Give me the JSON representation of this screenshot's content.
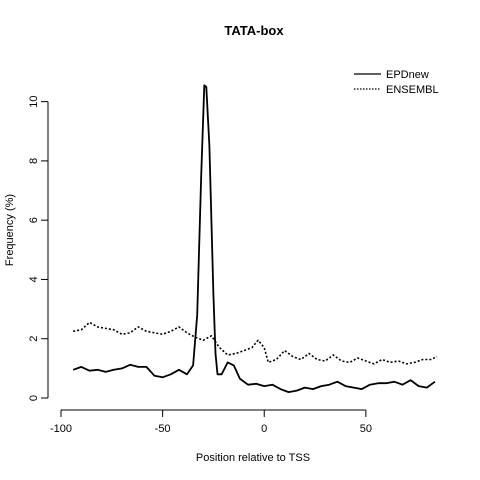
{
  "chart_data": {
    "type": "line",
    "title": "TATA-box",
    "xlabel": "Position relative to TSS",
    "ylabel": "Frequency (%)",
    "xlim": [
      -100,
      85
    ],
    "ylim": [
      0,
      11
    ],
    "x_ticks": [
      -100,
      -50,
      0,
      50
    ],
    "x_tick_labels": [
      "-100",
      "-50",
      "0",
      "50"
    ],
    "y_ticks": [
      0,
      2,
      4,
      6,
      8,
      10
    ],
    "y_tick_labels": [
      "0",
      "2",
      "4",
      "6",
      "8",
      "10"
    ],
    "grid": false,
    "legend_position": "top-right",
    "series": [
      {
        "name": "EPDnew",
        "style": "solid",
        "color": "#000000",
        "points": [
          [
            -94,
            0.95
          ],
          [
            -90,
            1.05
          ],
          [
            -86,
            0.92
          ],
          [
            -82,
            0.95
          ],
          [
            -78,
            0.88
          ],
          [
            -74,
            0.95
          ],
          [
            -70,
            1.0
          ],
          [
            -66,
            1.12
          ],
          [
            -62,
            1.05
          ],
          [
            -58,
            1.05
          ],
          [
            -54,
            0.75
          ],
          [
            -50,
            0.7
          ],
          [
            -46,
            0.8
          ],
          [
            -42,
            0.95
          ],
          [
            -38,
            0.8
          ],
          [
            -35,
            1.1
          ],
          [
            -33,
            2.8
          ],
          [
            -31,
            7.5
          ],
          [
            -29.5,
            10.55
          ],
          [
            -28.5,
            10.5
          ],
          [
            -27,
            8.5
          ],
          [
            -26,
            6.0
          ],
          [
            -25,
            3.5
          ],
          [
            -24,
            1.5
          ],
          [
            -23,
            0.8
          ],
          [
            -21,
            0.8
          ],
          [
            -18,
            1.2
          ],
          [
            -15,
            1.1
          ],
          [
            -12,
            0.65
          ],
          [
            -8,
            0.45
          ],
          [
            -4,
            0.48
          ],
          [
            0,
            0.4
          ],
          [
            4,
            0.45
          ],
          [
            8,
            0.3
          ],
          [
            12,
            0.2
          ],
          [
            16,
            0.25
          ],
          [
            20,
            0.35
          ],
          [
            24,
            0.3
          ],
          [
            28,
            0.4
          ],
          [
            32,
            0.45
          ],
          [
            36,
            0.55
          ],
          [
            40,
            0.4
          ],
          [
            44,
            0.35
          ],
          [
            48,
            0.3
          ],
          [
            52,
            0.45
          ],
          [
            56,
            0.5
          ],
          [
            60,
            0.5
          ],
          [
            64,
            0.55
          ],
          [
            68,
            0.45
          ],
          [
            72,
            0.6
          ],
          [
            76,
            0.4
          ],
          [
            80,
            0.35
          ],
          [
            84,
            0.55
          ]
        ]
      },
      {
        "name": "ENSEMBL",
        "style": "dotted",
        "color": "#000000",
        "points": [
          [
            -94,
            2.25
          ],
          [
            -90,
            2.3
          ],
          [
            -86,
            2.55
          ],
          [
            -82,
            2.4
          ],
          [
            -78,
            2.35
          ],
          [
            -74,
            2.3
          ],
          [
            -70,
            2.15
          ],
          [
            -66,
            2.2
          ],
          [
            -62,
            2.4
          ],
          [
            -58,
            2.25
          ],
          [
            -54,
            2.2
          ],
          [
            -50,
            2.15
          ],
          [
            -46,
            2.25
          ],
          [
            -42,
            2.4
          ],
          [
            -38,
            2.2
          ],
          [
            -34,
            2.05
          ],
          [
            -30,
            1.95
          ],
          [
            -26,
            2.1
          ],
          [
            -22,
            1.7
          ],
          [
            -18,
            1.45
          ],
          [
            -14,
            1.5
          ],
          [
            -10,
            1.6
          ],
          [
            -6,
            1.7
          ],
          [
            -3,
            1.95
          ],
          [
            0,
            1.7
          ],
          [
            2,
            1.2
          ],
          [
            6,
            1.3
          ],
          [
            10,
            1.6
          ],
          [
            14,
            1.4
          ],
          [
            18,
            1.3
          ],
          [
            22,
            1.5
          ],
          [
            26,
            1.3
          ],
          [
            30,
            1.25
          ],
          [
            34,
            1.45
          ],
          [
            38,
            1.25
          ],
          [
            42,
            1.2
          ],
          [
            46,
            1.35
          ],
          [
            50,
            1.25
          ],
          [
            54,
            1.15
          ],
          [
            58,
            1.3
          ],
          [
            62,
            1.2
          ],
          [
            66,
            1.25
          ],
          [
            70,
            1.15
          ],
          [
            74,
            1.2
          ],
          [
            78,
            1.3
          ],
          [
            82,
            1.3
          ],
          [
            85,
            1.4
          ]
        ]
      }
    ]
  }
}
